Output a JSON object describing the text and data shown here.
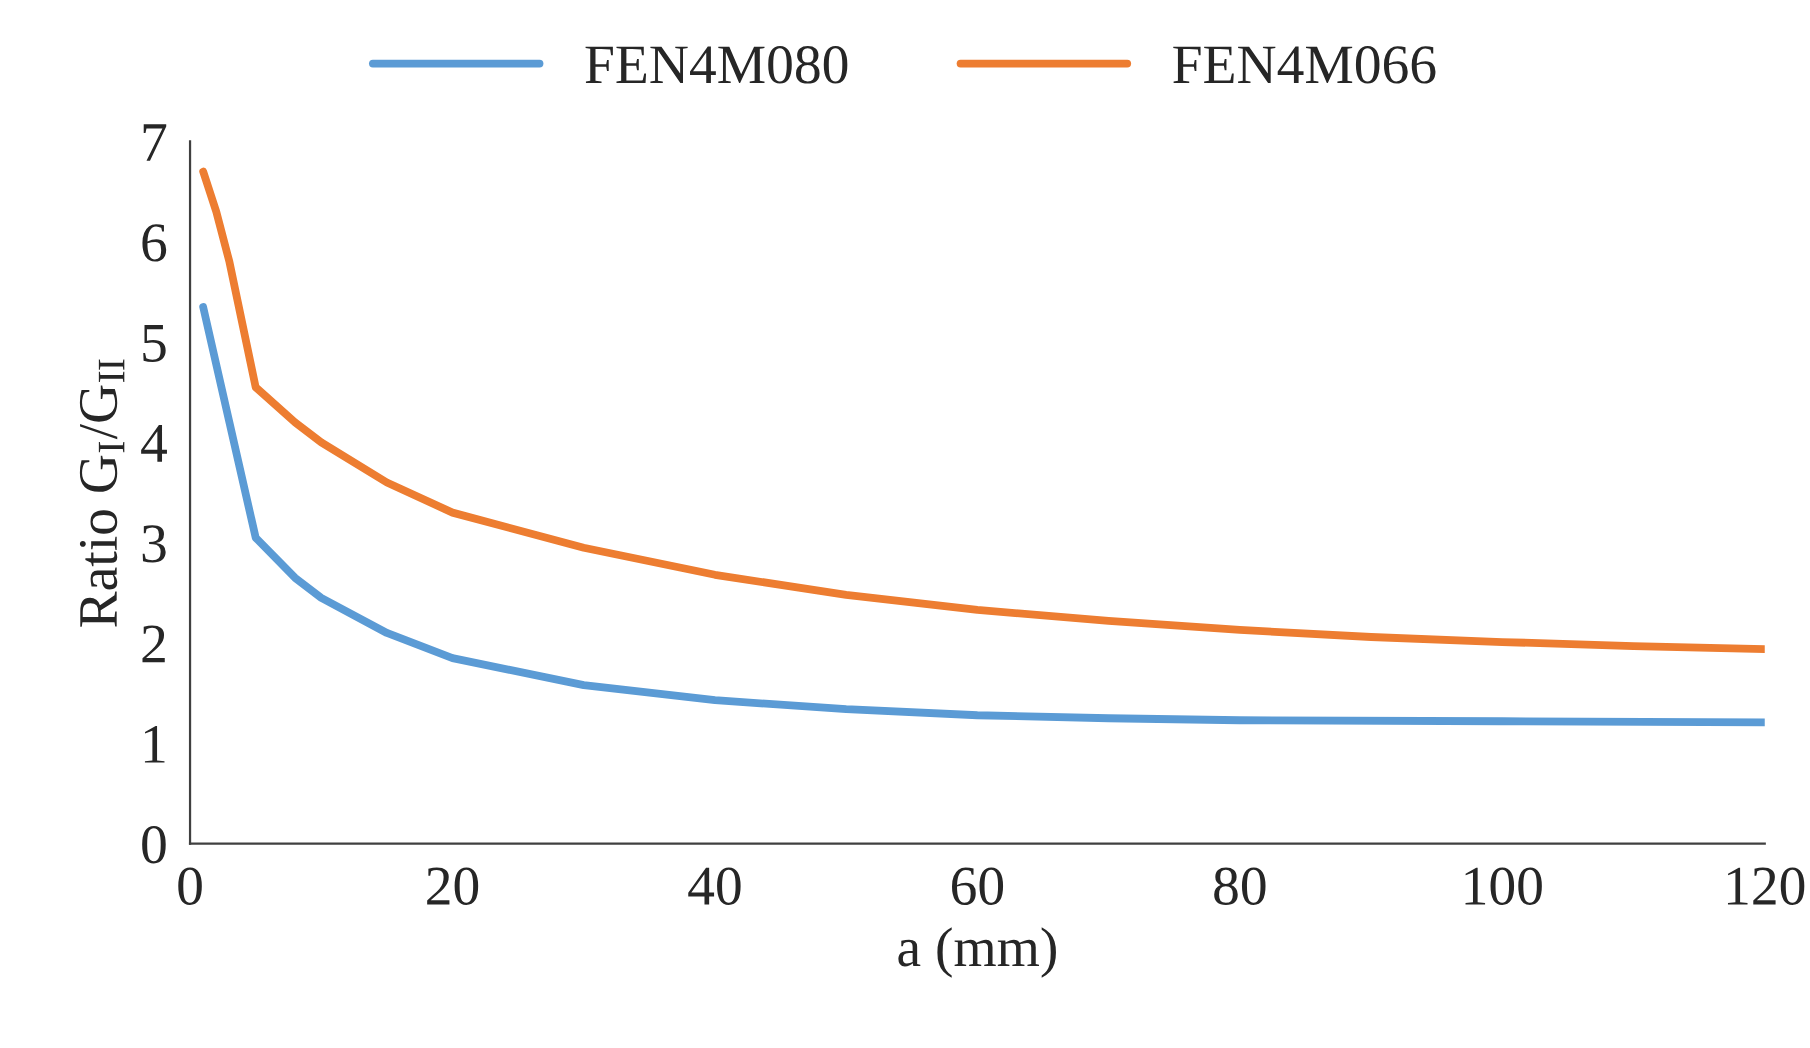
{
  "chart_data": {
    "type": "line",
    "xlabel": "a (mm)",
    "ylabel": "Ratio G$_{I}$/G$_{II}$",
    "xlim": [
      0,
      120
    ],
    "xticks": [
      0,
      20,
      40,
      60,
      80,
      100,
      120
    ],
    "ylim": [
      0,
      7
    ],
    "yticks": [
      0,
      1,
      2,
      3,
      4,
      5,
      6,
      7
    ],
    "grid": false,
    "legend": "top",
    "marker": "none",
    "line_style": "solid",
    "series": [
      {
        "name": "FEN4M080",
        "color": "#5b9bd5",
        "x": [
          1,
          3,
          5,
          8,
          10,
          15,
          20,
          30,
          40,
          50,
          60,
          70,
          80,
          100,
          120
        ],
        "values": [
          5.35,
          4.2,
          3.05,
          2.65,
          2.45,
          2.1,
          1.85,
          1.58,
          1.43,
          1.34,
          1.28,
          1.25,
          1.23,
          1.22,
          1.21
        ]
      },
      {
        "name": "FEN4M066",
        "color": "#ed7d31",
        "x": [
          1,
          2,
          3,
          5,
          8,
          10,
          15,
          20,
          30,
          40,
          50,
          60,
          70,
          80,
          90,
          100,
          110,
          120
        ],
        "values": [
          6.7,
          6.3,
          5.8,
          4.55,
          4.2,
          4.0,
          3.6,
          3.3,
          2.95,
          2.68,
          2.48,
          2.33,
          2.22,
          2.13,
          2.06,
          2.01,
          1.97,
          1.94
        ]
      }
    ]
  }
}
